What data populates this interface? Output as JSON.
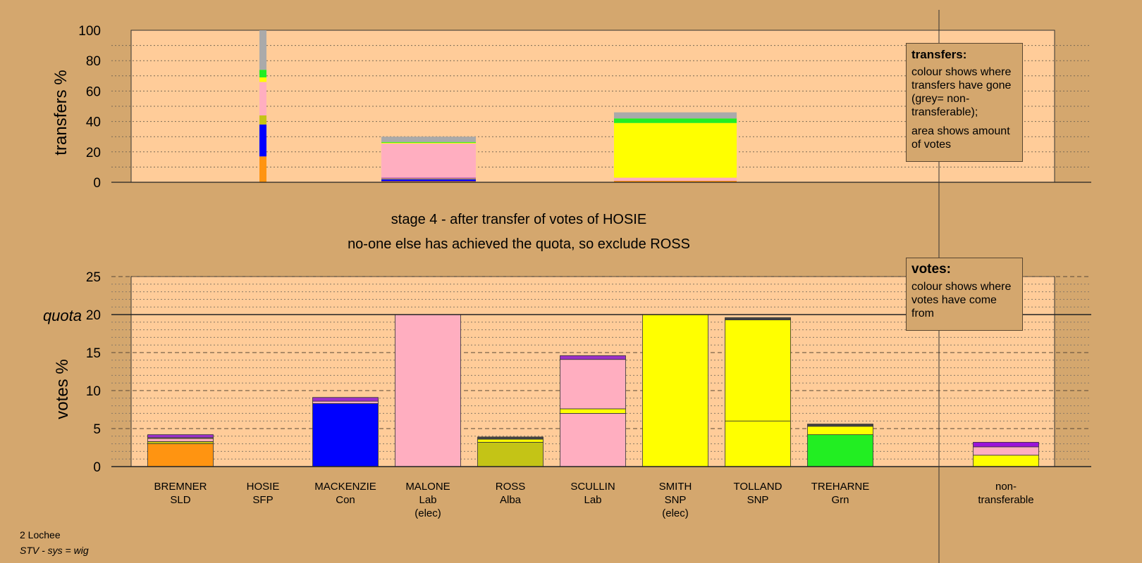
{
  "colors": {
    "background": "#D4A76E",
    "plot_background": "#FFCC99",
    "SLD": "#FF9411",
    "SFP": "#9B30C8",
    "Con": "#0000FF",
    "Lab": "#FFAEC0",
    "Alba": "#C4C416",
    "SNP": "#FFFF00",
    "Grn": "#22EE22",
    "dark": "#444444",
    "nontransferable": "#AAAAAA",
    "purple": "#9914D9"
  },
  "stage_title": "stage 4 - after transfer of votes of HOSIE",
  "stage_subtitle": "no-one else has achieved the quota, so exclude ROSS",
  "quota_label": "quota",
  "transfers_legend": {
    "title": "transfers:",
    "line1": "colour shows where transfers have gone (grey= non-transferable);",
    "line2": "area shows amount of votes"
  },
  "votes_legend": {
    "title": "votes:",
    "line1": "colour shows where votes have come from"
  },
  "footer": {
    "area": "2 Lochee",
    "system": "STV - sys = wig"
  },
  "chart_data": [
    {
      "type": "bar",
      "stacked": true,
      "name": "transfers",
      "ylabel": "transfers %",
      "ylim": [
        0,
        100
      ],
      "yticks": [
        0,
        20,
        40,
        60,
        80,
        100
      ],
      "grid": true,
      "legend_position": "top-right",
      "columns": [
        {
          "from": "HOSIE",
          "width_share": 0.03,
          "segments": [
            {
              "to": "SLD",
              "value": 17
            },
            {
              "to": "Con",
              "value": 21
            },
            {
              "to": "Alba",
              "value": 6
            },
            {
              "to": "Lab",
              "value": 22
            },
            {
              "to": "SNP",
              "value": 3
            },
            {
              "to": "Grn",
              "value": 5
            },
            {
              "to": "non-transferable",
              "value": 26
            }
          ]
        },
        {
          "from": "MALONE",
          "width_share": 0.46,
          "segments": [
            {
              "to": "SLD",
              "value": 0.7
            },
            {
              "to": "Con",
              "value": 1.3
            },
            {
              "to": "Alba",
              "value": 0.5
            },
            {
              "to": "SFP",
              "value": 0.5
            },
            {
              "to": "Lab",
              "value": 22.5
            },
            {
              "to": "SNP",
              "value": 0.5
            },
            {
              "to": "Grn",
              "value": 0.5
            },
            {
              "to": "non-transferable",
              "value": 3.5
            }
          ]
        },
        {
          "from": "SMITH",
          "width_share": 0.63,
          "segments": [
            {
              "to": "SLD",
              "value": 1
            },
            {
              "to": "Lab",
              "value": 2
            },
            {
              "to": "SNP",
              "value": 36
            },
            {
              "to": "Grn",
              "value": 3
            },
            {
              "to": "non-transferable",
              "value": 4
            }
          ]
        }
      ]
    },
    {
      "type": "bar",
      "stacked": true,
      "name": "votes",
      "ylabel": "votes %",
      "ylim": [
        0,
        25
      ],
      "yticks": [
        0,
        5,
        10,
        15,
        20,
        25
      ],
      "quota": 20,
      "grid": true,
      "legend_position": "top-right",
      "candidates": [
        {
          "name": "BREMNER",
          "party": "SLD",
          "status": "",
          "segments": [
            {
              "from": "SLD",
              "value": 3.0
            },
            {
              "from": "Alba",
              "value": 0.3
            },
            {
              "from": "Lab",
              "value": 0.4
            },
            {
              "from": "SNP",
              "value": 0.1
            },
            {
              "from": "SFP",
              "value": 0.4
            }
          ]
        },
        {
          "name": "HOSIE",
          "party": "SFP",
          "status": "",
          "segments": []
        },
        {
          "name": "MACKENZIE",
          "party": "Con",
          "status": "",
          "segments": [
            {
              "from": "Con",
              "value": 8.3
            },
            {
              "from": "Lab",
              "value": 0.3
            },
            {
              "from": "SFP",
              "value": 0.5
            }
          ]
        },
        {
          "name": "MALONE",
          "party": "Lab",
          "status": "(elec)",
          "segments": [
            {
              "from": "Lab",
              "value": 20
            }
          ]
        },
        {
          "name": "ROSS",
          "party": "Alba",
          "status": "",
          "segments": [
            {
              "from": "Alba",
              "value": 3.2
            },
            {
              "from": "SNP",
              "value": 0.4
            },
            {
              "from": "dark",
              "value": 0.3
            }
          ]
        },
        {
          "name": "SCULLIN",
          "party": "Lab",
          "status": "",
          "segments": [
            {
              "from": "Lab",
              "value": 7.0
            },
            {
              "from": "SNP",
              "value": 0.6
            },
            {
              "from": "Lab",
              "value": 6.5
            },
            {
              "from": "SFP",
              "value": 0.5
            }
          ]
        },
        {
          "name": "SMITH",
          "party": "SNP",
          "status": "(elec)",
          "segments": [
            {
              "from": "SNP",
              "value": 20
            }
          ]
        },
        {
          "name": "TOLLAND",
          "party": "SNP",
          "status": "",
          "segments": [
            {
              "from": "SNP",
              "value": 6.0
            },
            {
              "from": "SNP",
              "value": 13.3
            },
            {
              "from": "dark",
              "value": 0.3
            }
          ]
        },
        {
          "name": "TREHARNE",
          "party": "Grn",
          "status": "",
          "segments": [
            {
              "from": "Grn",
              "value": 4.2
            },
            {
              "from": "SNP",
              "value": 1.1
            },
            {
              "from": "dark",
              "value": 0.3
            }
          ]
        }
      ],
      "nontransferable": {
        "label1": "non-",
        "label2": "transferable",
        "segments": [
          {
            "from": "SNP",
            "value": 1.5
          },
          {
            "from": "Lab",
            "value": 1.1
          },
          {
            "from": "purple",
            "value": 0.6
          }
        ]
      }
    }
  ]
}
